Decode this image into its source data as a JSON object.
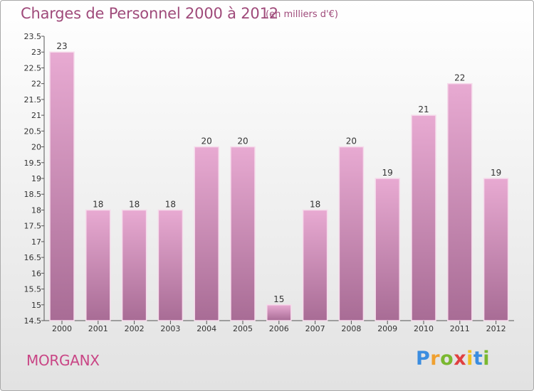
{
  "header": {
    "title": "Charges de Personnel 2000 à 2012",
    "subtitle": "(en milliers d'€)"
  },
  "footer": {
    "place": "MORGANX",
    "logo": {
      "letters": [
        "P",
        "r",
        "o",
        "x",
        "i",
        "t",
        "i"
      ],
      "colors": [
        "#3b8de0",
        "#f0a030",
        "#7ab830",
        "#e04040",
        "#f0c020",
        "#3b8de0",
        "#7ab830"
      ]
    }
  },
  "colors": {
    "bar_top": "#e8aad2",
    "bar_bottom": "#a86c95",
    "bar_edge": "#f6dbeb",
    "title": "#9f4a7a",
    "place": "#c94585"
  },
  "chart_data": {
    "type": "bar",
    "title": "Charges de Personnel 2000 à 2012",
    "subtitle": "(en milliers d'€)",
    "xlabel": "",
    "ylabel": "",
    "categories": [
      "2000",
      "2001",
      "2002",
      "2003",
      "2004",
      "2005",
      "2006",
      "2007",
      "2008",
      "2009",
      "2010",
      "2011",
      "2012"
    ],
    "values": [
      23,
      18,
      18,
      18,
      20,
      20,
      15,
      18,
      20,
      19,
      21,
      22,
      19
    ],
    "data_labels": [
      "23",
      "18",
      "18",
      "18",
      "20",
      "20",
      "15",
      "18",
      "20",
      "19",
      "21",
      "22",
      "19"
    ],
    "ylim": [
      14.5,
      23.5
    ],
    "yticks": [
      "14.5",
      "15",
      "15.5",
      "16",
      "16.5",
      "17",
      "17.5",
      "18",
      "18.5",
      "19",
      "19.5",
      "20",
      "20.5",
      "21",
      "21.5",
      "22",
      "22.5",
      "23",
      "23.5"
    ],
    "grid": false,
    "legend": "none"
  }
}
